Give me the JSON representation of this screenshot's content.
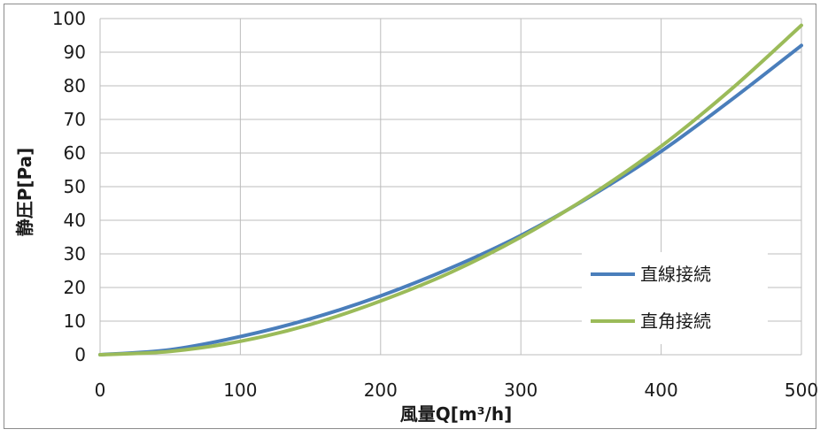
{
  "chart_data": {
    "type": "line",
    "xlabel": "風量Q[m³/h]",
    "ylabel": "静圧P[Pa]",
    "xlim": [
      0,
      500
    ],
    "ylim": [
      0,
      100
    ],
    "x_ticks": [
      "0",
      "100",
      "200",
      "300",
      "400",
      "500"
    ],
    "y_ticks": [
      "0",
      "10",
      "20",
      "30",
      "40",
      "50",
      "60",
      "70",
      "80",
      "90",
      "100"
    ],
    "grid": true,
    "legend_position": "bottom-right",
    "series": [
      {
        "name": "直線接続",
        "color": "#4a7ebb",
        "x": [
          0,
          50,
          100,
          150,
          200,
          250,
          300,
          350,
          400,
          450,
          500
        ],
        "y": [
          0,
          1.5,
          5.4,
          10.7,
          17.5,
          25.8,
          35.5,
          47.2,
          60.5,
          75.8,
          92
        ]
      },
      {
        "name": "直角接続",
        "color": "#9bbb59",
        "x": [
          0,
          50,
          100,
          150,
          200,
          250,
          300,
          350,
          400,
          450,
          500
        ],
        "y": [
          0,
          1,
          4,
          9,
          16,
          24.5,
          35,
          47.5,
          62,
          79,
          98
        ]
      }
    ]
  }
}
